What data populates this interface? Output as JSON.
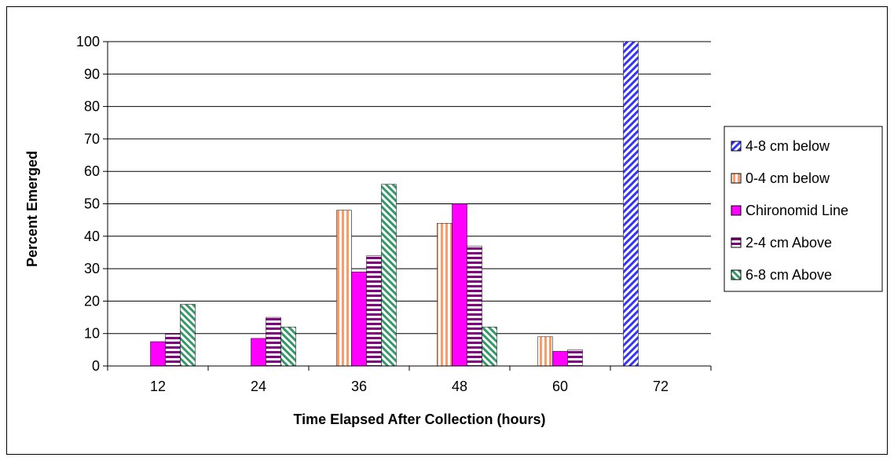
{
  "chart_data": {
    "type": "bar",
    "title": "",
    "xlabel": "Time Elapsed After Collection (hours)",
    "ylabel": "Percent Emerged",
    "categories": [
      "12",
      "24",
      "36",
      "48",
      "60",
      "72"
    ],
    "ylim": [
      0,
      100
    ],
    "yticks": [
      0,
      10,
      20,
      30,
      40,
      50,
      60,
      70,
      80,
      90,
      100
    ],
    "grid": true,
    "legend_position": "right",
    "series": [
      {
        "name": "4-8 cm below",
        "color": "#3333ff",
        "pattern": "diagonal-stripes",
        "values": [
          0,
          0,
          0,
          0,
          0,
          100
        ]
      },
      {
        "name": "0-4 cm below",
        "color": "#ff9966",
        "pattern": "vertical-stripes",
        "values": [
          0,
          0,
          48,
          44,
          9,
          0
        ]
      },
      {
        "name": "Chironomid Line",
        "color": "#ff00ff",
        "pattern": "solid",
        "values": [
          7.5,
          8.5,
          29,
          50,
          4.5,
          0
        ]
      },
      {
        "name": "2-4 cm Above",
        "color": "#800080",
        "pattern": "horizontal-stripes",
        "values": [
          10,
          15,
          34,
          37,
          5,
          0
        ]
      },
      {
        "name": "6-8 cm Above",
        "color": "#339966",
        "pattern": "diagonal-stripes-green",
        "values": [
          19,
          12,
          56,
          12,
          0,
          0
        ]
      }
    ]
  }
}
